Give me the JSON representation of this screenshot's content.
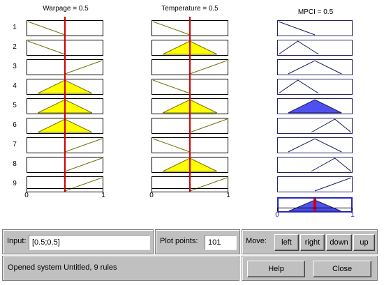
{
  "rule_viewer": {
    "input_columns": [
      {
        "title": "Warpage = 0.5",
        "axis_min": "0",
        "axis_max": "1",
        "value": 0.5
      },
      {
        "title": "Temperature = 0.5",
        "axis_min": "0",
        "axis_max": "1",
        "value": 0.5
      }
    ],
    "output_column": {
      "title": "MPCI = 0.5",
      "axis_min": "0",
      "axis_max": "1",
      "value": 0.5
    },
    "rule_numbers": [
      "1",
      "2",
      "3",
      "4",
      "5",
      "6",
      "7",
      "8",
      "9"
    ],
    "input_mf_shapes": [
      [
        "falling-low",
        "falling-low",
        "rising-high",
        "tri-mid",
        "tri-mid",
        "tri-mid",
        "rising-high",
        "rising-high",
        "rising-high"
      ],
      [
        "falling-low",
        "tri-mid",
        "rising-high",
        "falling-low",
        "tri-mid",
        "rising-high",
        "falling-low",
        "tri-mid",
        "rising-high"
      ]
    ],
    "input_activation": [
      [
        0.0,
        0.0,
        0.0,
        1.0,
        1.0,
        1.0,
        0.0,
        0.0,
        0.0
      ],
      [
        0.0,
        1.0,
        0.0,
        0.0,
        1.0,
        0.0,
        0.0,
        1.0,
        0.0
      ]
    ],
    "output_mf_shapes": [
      "falling-low",
      "tri-low",
      "tri-mid",
      "tri-low",
      "tri-mid",
      "tri-high",
      "tri-mid",
      "tri-high",
      "rising-high"
    ],
    "output_activation": [
      0.0,
      0.0,
      0.0,
      0.0,
      1.0,
      0.0,
      0.0,
      0.0,
      0.0
    ],
    "colors": {
      "input_fill": "#ffff00",
      "input_stroke": "#707000",
      "output_fill": "#5050f0",
      "output_stroke": "#1a1a60",
      "value_line": "#d20000"
    }
  },
  "controls": {
    "input_label": "Input:",
    "input_value": "[0.5;0.5]",
    "plot_points_label": "Plot points:",
    "plot_points_value": "101",
    "move_label": "Move:",
    "left_label": "left",
    "right_label": "right",
    "down_label": "down",
    "up_label": "up",
    "status_text": "Opened system Untitled, 9 rules",
    "help_label": "Help",
    "close_label": "Close"
  }
}
